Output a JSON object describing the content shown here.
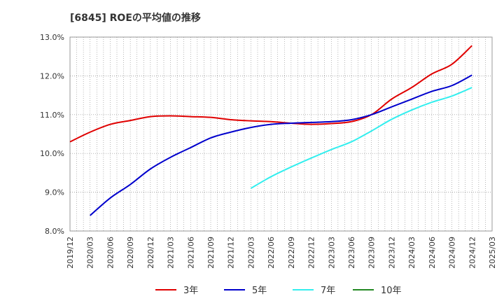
{
  "chart_data": {
    "type": "line",
    "title": "[6845]  ROEの平均値の推移",
    "xlabel": "",
    "ylabel": "",
    "ylim": [
      8.0,
      13.0
    ],
    "yticks": [
      8.0,
      9.0,
      10.0,
      11.0,
      12.0,
      13.0
    ],
    "ytick_labels": [
      "8.0%",
      "9.0%",
      "10.0%",
      "11.0%",
      "12.0%",
      "13.0%"
    ],
    "xticks": [
      "2019/12",
      "2020/03",
      "2020/06",
      "2020/09",
      "2020/12",
      "2021/03",
      "2021/06",
      "2021/09",
      "2021/12",
      "2022/03",
      "2022/06",
      "2022/09",
      "2022/12",
      "2023/03",
      "2023/06",
      "2023/09",
      "2023/12",
      "2024/03",
      "2024/06",
      "2024/09",
      "2024/12",
      "2025/03"
    ],
    "grid": true,
    "legend_position": "bottom",
    "series": [
      {
        "name": "3年",
        "color": "#e00000",
        "x": [
          "2019/12",
          "2020/03",
          "2020/06",
          "2020/09",
          "2020/12",
          "2021/03",
          "2021/06",
          "2021/09",
          "2021/12",
          "2022/03",
          "2022/06",
          "2022/09",
          "2022/12",
          "2023/03",
          "2023/06",
          "2023/09",
          "2023/12",
          "2024/03",
          "2024/06",
          "2024/09",
          "2024/12"
        ],
        "values": [
          10.3,
          10.55,
          10.75,
          10.85,
          10.95,
          10.97,
          10.95,
          10.93,
          10.87,
          10.84,
          10.82,
          10.78,
          10.75,
          10.77,
          10.82,
          11.0,
          11.4,
          11.7,
          12.05,
          12.3,
          12.78
        ]
      },
      {
        "name": "5年",
        "color": "#0000cc",
        "x": [
          "2020/03",
          "2020/06",
          "2020/09",
          "2020/12",
          "2021/03",
          "2021/06",
          "2021/09",
          "2021/12",
          "2022/03",
          "2022/06",
          "2022/09",
          "2022/12",
          "2023/03",
          "2023/06",
          "2023/09",
          "2023/12",
          "2024/03",
          "2024/06",
          "2024/09",
          "2024/12"
        ],
        "values": [
          8.4,
          8.85,
          9.2,
          9.6,
          9.9,
          10.15,
          10.4,
          10.55,
          10.67,
          10.75,
          10.78,
          10.8,
          10.82,
          10.87,
          11.0,
          11.2,
          11.4,
          11.6,
          11.75,
          12.02
        ]
      },
      {
        "name": "7年",
        "color": "#33eeee",
        "x": [
          "2022/03",
          "2022/06",
          "2022/09",
          "2022/12",
          "2023/03",
          "2023/06",
          "2023/09",
          "2023/12",
          "2024/03",
          "2024/06",
          "2024/09",
          "2024/12"
        ],
        "values": [
          9.1,
          9.4,
          9.65,
          9.88,
          10.1,
          10.3,
          10.58,
          10.88,
          11.12,
          11.32,
          11.48,
          11.7
        ]
      },
      {
        "name": "10年",
        "color": "#228822",
        "x": [],
        "values": []
      }
    ]
  }
}
